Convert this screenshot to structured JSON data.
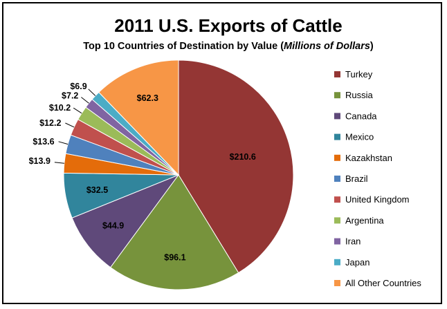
{
  "chart_data": {
    "type": "pie",
    "title": "2011 U.S. Exports of Cattle",
    "subtitle_prefix": "Top 10  Countries of Destination by Value (",
    "subtitle_unit": "Millions of Dollars",
    "subtitle_suffix": ")",
    "legend_position": "right",
    "slices": [
      {
        "name": "Turkey",
        "value": 210.6,
        "label": "$210.6",
        "color": "#943634"
      },
      {
        "name": "Russia",
        "value": 96.1,
        "label": "$96.1",
        "color": "#77933c"
      },
      {
        "name": "Canada",
        "value": 44.9,
        "label": "$44.9",
        "color": "#5f497a"
      },
      {
        "name": "Mexico",
        "value": 32.5,
        "label": "$32.5",
        "color": "#31859c"
      },
      {
        "name": "Kazakhstan",
        "value": 13.9,
        "label": "$13.9",
        "color": "#e46c0a"
      },
      {
        "name": "Brazil",
        "value": 13.6,
        "label": "$13.6",
        "color": "#4f81bd"
      },
      {
        "name": "United Kingdom",
        "value": 12.2,
        "label": "$12.2",
        "color": "#c0504d"
      },
      {
        "name": "Argentina",
        "value": 10.2,
        "label": "$10.2",
        "color": "#9bbb59"
      },
      {
        "name": "Iran",
        "value": 7.2,
        "label": "$7.2",
        "color": "#8064a2"
      },
      {
        "name": "Japan",
        "value": 6.9,
        "label": "$6.9",
        "color": "#4bacc6"
      },
      {
        "name": "All Other Countries",
        "value": 62.3,
        "label": "$62.3",
        "color": "#f79646"
      }
    ]
  }
}
